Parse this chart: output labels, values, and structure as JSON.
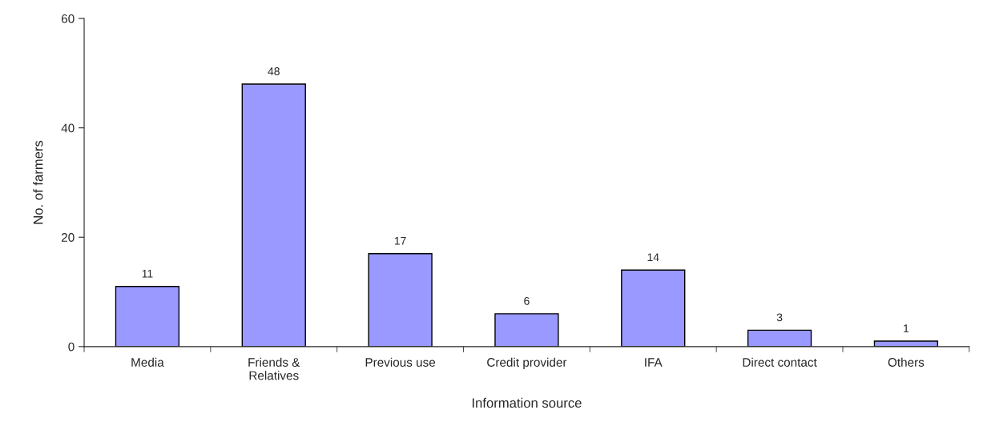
{
  "chart_data": {
    "type": "bar",
    "xlabel": "Information source",
    "ylabel": "No. of farmers",
    "categories": [
      "Media",
      "Friends &\nRelatives",
      "Previous use",
      "Credit provider",
      "IFA",
      "Direct contact",
      "Others"
    ],
    "values": [
      11,
      48,
      17,
      6,
      14,
      3,
      1
    ],
    "color": "#9999ff",
    "ylim": [
      0,
      60
    ],
    "yticks": [
      0,
      20,
      40,
      60
    ],
    "grid": false,
    "data_labels": true
  }
}
